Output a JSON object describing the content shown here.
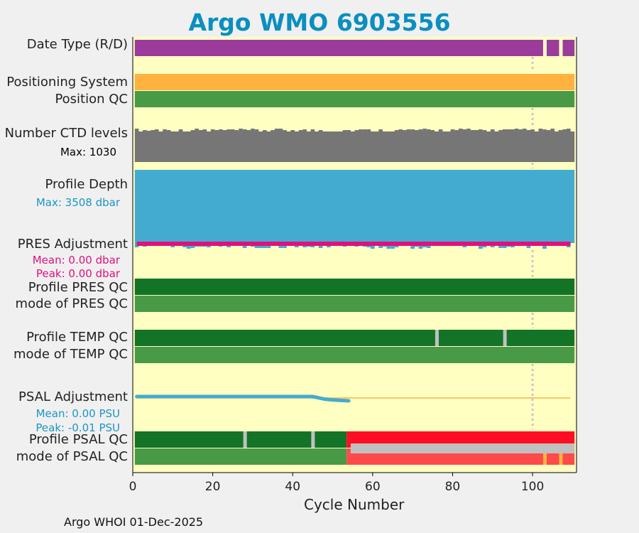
{
  "title": "Argo WMO 6903556",
  "footer": "Argo WHOI 01-Dec-2025",
  "colors": {
    "background": "#ffffc2",
    "title": "#0a8fc0",
    "date_type": "#9b3c9c",
    "positioning_system": "#ffb240",
    "qc_good_dark": "#137327",
    "qc_good_light": "#489a46",
    "ctd_levels": "#767676",
    "profile_depth": "#44abd0",
    "pres_adjustment": "#e0107c",
    "psal_adjustment": "#44abd0",
    "qc_bad": "#ff0d23",
    "qc_bad_light": "#ff4a4a",
    "gap": "#c0c0c0",
    "accent_orange": "#ffb240"
  },
  "rows": {
    "date_type": "Date Type (R/D)",
    "positioning_system": "Positioning System",
    "position_qc": "Position QC",
    "ctd_levels": "Number CTD levels",
    "ctd_levels_max": "Max: 1030",
    "profile_depth": "Profile Depth",
    "profile_depth_max": "Max: 3508 dbar",
    "pres_adjustment": "PRES Adjustment",
    "pres_mean": "Mean: 0.00 dbar",
    "pres_peak": "Peak: 0.00 dbar",
    "profile_pres_qc": "Profile PRES QC",
    "mode_pres_qc": "mode of PRES QC",
    "profile_temp_qc": "Profile TEMP QC",
    "mode_temp_qc": "mode of TEMP QC",
    "psal_adjustment": "PSAL Adjustment",
    "psal_mean": "Mean: 0.00 PSU",
    "psal_peak": "Peak: -0.01 PSU",
    "profile_psal_qc": "Profile PSAL QC",
    "mode_psal_qc": "mode of PSAL QC"
  },
  "chart_data": {
    "type": "timeline",
    "title": "Argo WMO 6903556",
    "xlabel": "Cycle Number",
    "xlim": [
      0,
      111
    ],
    "xticks": [
      0,
      20,
      40,
      60,
      80,
      100
    ],
    "reference_line_x": 100,
    "last_cycle": 110,
    "date_type_gaps": [
      103,
      107
    ],
    "ctd_levels_max": 1030,
    "profile_depth_max_dbar": 3508,
    "temp_qc_gaps": [
      76,
      93
    ],
    "psal_qc_gaps": [
      28,
      45
    ],
    "psal_bad_from_cycle": 54,
    "psal_mode_orange_cycles": [
      103,
      107
    ],
    "pres_adjustment_dbar": {
      "mean": 0.0,
      "peak": 0.0
    },
    "psal_adjustment_psu": {
      "mean": 0.0,
      "peak": -0.01
    },
    "psal_adjustment_curve": [
      [
        1,
        0.0
      ],
      [
        10,
        0.0
      ],
      [
        20,
        0.0
      ],
      [
        30,
        0.0
      ],
      [
        40,
        0.0
      ],
      [
        45,
        0.0
      ],
      [
        46,
        -0.002
      ],
      [
        47,
        -0.004
      ],
      [
        48,
        -0.006
      ],
      [
        50,
        -0.008
      ],
      [
        52,
        -0.009
      ],
      [
        54,
        -0.01
      ]
    ]
  }
}
